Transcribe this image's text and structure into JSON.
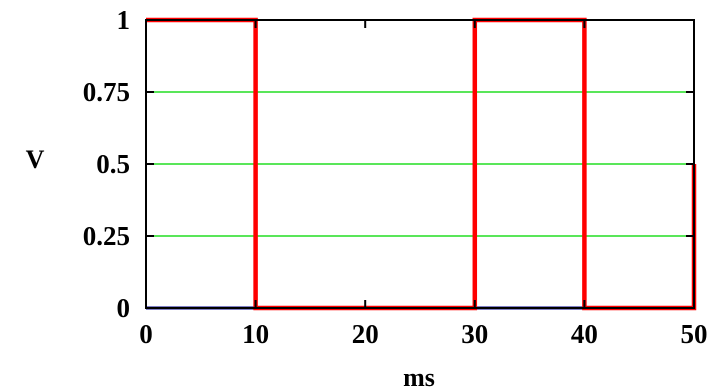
{
  "chart_data": {
    "type": "line",
    "title": "",
    "xlabel": "ms",
    "ylabel": "V",
    "xlim": [
      0,
      50
    ],
    "ylim": [
      0,
      1
    ],
    "x_ticks": [
      0,
      10,
      20,
      30,
      40,
      50
    ],
    "x_tick_labels": [
      "0",
      "10",
      "20",
      "30",
      "40",
      "50"
    ],
    "y_ticks": [
      0,
      0.25,
      0.5,
      0.75,
      1
    ],
    "y_tick_labels": [
      "0",
      "0.25",
      "0.5",
      "0.75",
      "1"
    ],
    "grid": "horizontal",
    "series": [
      {
        "color": "#ff0000",
        "x": [
          0,
          10,
          10,
          30,
          30,
          40,
          40,
          50,
          50
        ],
        "y": [
          1,
          1,
          0,
          0,
          1,
          1,
          0,
          0,
          0.5
        ]
      },
      {
        "color": "#00008b",
        "x": [
          0,
          50
        ],
        "y": [
          0,
          0
        ]
      }
    ],
    "colors": {
      "grid": "#22dd22",
      "axes": "#000000",
      "background": "#ffffff"
    }
  }
}
